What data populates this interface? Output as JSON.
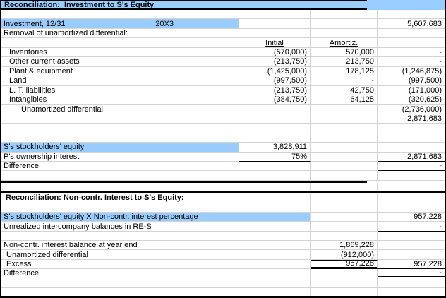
{
  "sheet": {
    "colors": {
      "highlight": "#99CCFF",
      "gridline": "#D4D4D4",
      "border": "#000000"
    },
    "section1": {
      "title": "Reconciliation:  Investment to S's Equity",
      "column_headers": {
        "d": "Initial",
        "e": "Amortiz."
      },
      "rows": [
        {},
        {
          "a": "Investment, 12/31",
          "b": "20X3",
          "f": "5,607,683",
          "hl": "ac"
        },
        {
          "a": "Removal of unamortized differential:"
        },
        {
          "d": "Initial",
          "e": "Amortiz.",
          "header": true
        },
        {
          "a": "Inventories",
          "ind": 1,
          "d": "(570,000)",
          "e": "570,000",
          "f": "-"
        },
        {
          "a": "Other current assets",
          "ind": 1,
          "d": "(213,750)",
          "e": "213,750",
          "f": "-"
        },
        {
          "a": "Plant & equipment",
          "ind": 1,
          "d": "(1,425,000)",
          "e": "178,125",
          "f": "(1,246,875)"
        },
        {
          "a": "Land",
          "ind": 1,
          "d": "(997,500)",
          "e": "-",
          "f": "(997,500)"
        },
        {
          "a": "L. T. liabilities",
          "ind": 1,
          "d": "(213,750)",
          "e": "42,750",
          "f": "(171,000)"
        },
        {
          "a": "Intangibles",
          "ind": 1,
          "d": "(384,750)",
          "e": "64,125",
          "f": "(320,625)"
        },
        {
          "a": "Unamortized differential",
          "ind": 2,
          "f": "(2,736,000)",
          "fs": "sub"
        },
        {
          "f": "2,871,683"
        },
        {},
        {},
        {
          "a": "S's stockholders' equity",
          "d": "3,828,911",
          "hl": "ac"
        },
        {
          "a": "P's ownership interest",
          "d": "75%",
          "ds": "bot",
          "f": "2,871,683",
          "fs": "bot"
        },
        {
          "a": "Difference",
          "f": "-",
          "fs": "dbl"
        },
        {}
      ]
    },
    "section2": {
      "title": "Reconciliation: Non-contr. Interest to S's Equity:",
      "rows": [
        {},
        {
          "a": "S's stockholders' equity X Non-contr. interest percentage",
          "f": "957,228",
          "hl": "ad"
        },
        {
          "a": "Unrealized intercompany balances in RE-S",
          "f": "-",
          "fs": "bot"
        },
        {},
        {
          "a": "Non-contr. interest balance at year end",
          "e": "1,869,228"
        },
        {
          "a": "Unamortized differential",
          "ind": 3,
          "e": "(912,000)"
        },
        {
          "a": "Excess",
          "ind": 3,
          "e": "957,228",
          "es": "tot",
          "f": "957,228",
          "fs": "bot"
        },
        {
          "a": "Difference",
          "f": "-",
          "fs": "dbl"
        },
        {},
        {}
      ]
    }
  }
}
